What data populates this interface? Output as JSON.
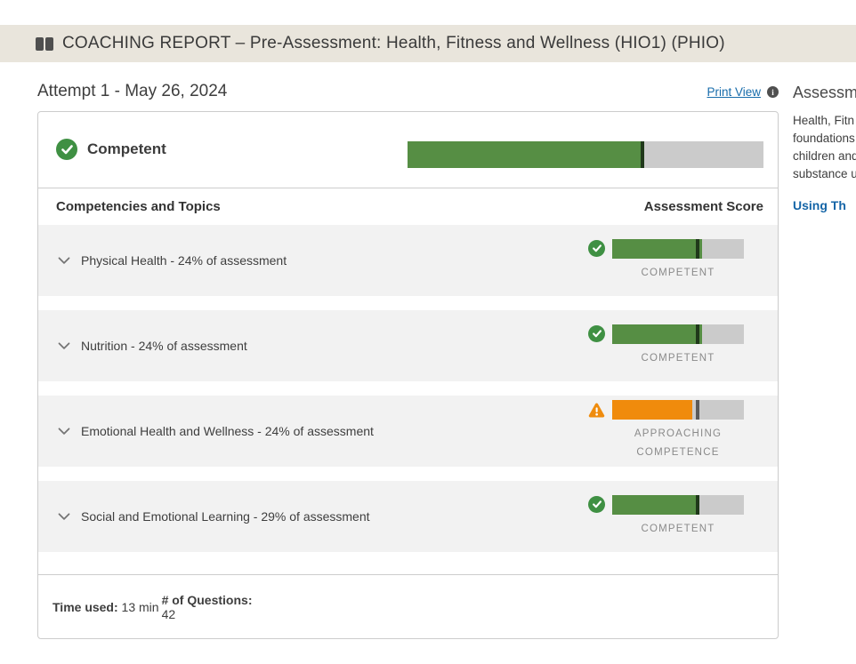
{
  "banner": {
    "title": "COACHING REPORT – Pre-Assessment: Health, Fitness and Wellness (HIO1) (PHIO)"
  },
  "header": {
    "attempt_title": "Attempt 1 - May 26, 2024",
    "print_view_label": "Print View",
    "info_icon_glyph": "i"
  },
  "overall": {
    "status_label": "Competent",
    "bar": {
      "fill_pct": 66,
      "marker_pct": 66,
      "fill_color": "#568e44",
      "marker_color": "#20391b"
    }
  },
  "table": {
    "left_header": "Competencies and Topics",
    "right_header": "Assessment Score",
    "rows": [
      {
        "label": "Physical Health - 24% of assessment",
        "icon": "check",
        "status_lines": [
          "COMPETENT"
        ],
        "bar": {
          "fill_pct": 68,
          "marker_pct": 65,
          "fill_color": "#568e44",
          "marker_color": "#20391b"
        }
      },
      {
        "label": "Nutrition - 24% of assessment",
        "icon": "check",
        "status_lines": [
          "COMPETENT"
        ],
        "bar": {
          "fill_pct": 68,
          "marker_pct": 65,
          "fill_color": "#568e44",
          "marker_color": "#20391b"
        }
      },
      {
        "label": "Emotional Health and Wellness - 24% of assessment",
        "icon": "warning",
        "status_lines": [
          "APPROACHING",
          "COMPETENCE"
        ],
        "bar": {
          "fill_pct": 61,
          "marker_pct": 65,
          "fill_color": "#f08b0c",
          "marker_color": "#5a5a5a"
        }
      },
      {
        "label": "Social and Emotional Learning - 29% of assessment",
        "icon": "check",
        "status_lines": [
          "COMPETENT"
        ],
        "bar": {
          "fill_pct": 64,
          "marker_pct": 65,
          "fill_color": "#568e44",
          "marker_color": "#20391b"
        }
      }
    ]
  },
  "footer": {
    "time_label": "Time used:",
    "time_value": "13 min",
    "questions_label": "# of Questions:",
    "questions_value": "42"
  },
  "sidebar": {
    "heading": "Assessm",
    "body_lines": [
      "Health, Fitn",
      "foundations",
      "children and",
      "substance u"
    ],
    "link_label": "Using Th"
  },
  "colors": {
    "banner_bg": "#e9e5dc",
    "competent_green": "#568e44",
    "approaching_orange": "#f08b0c",
    "track_gray": "#cbcbcb",
    "link_blue": "#176cab"
  }
}
